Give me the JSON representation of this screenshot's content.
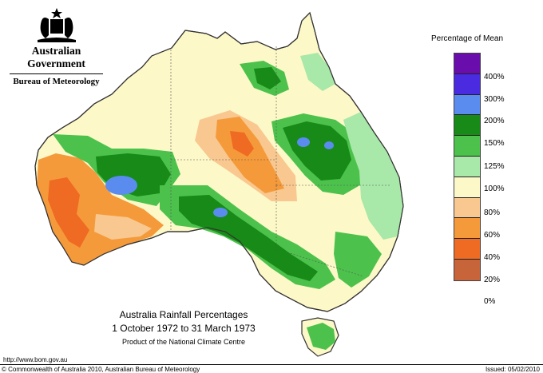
{
  "logo": {
    "government": "Australian Government",
    "bureau": "Bureau of Meteorology"
  },
  "map": {
    "title": "Australia Rainfall Percentages",
    "period": "1 October 1972 to 31 March 1973",
    "credit": "Product of the National Climate Centre"
  },
  "legend": {
    "title": "Percentage of Mean",
    "items": [
      {
        "label": "400%",
        "color": "#6a0dad"
      },
      {
        "label": "300%",
        "color": "#4a2be0"
      },
      {
        "label": "200%",
        "color": "#5a8cf0"
      },
      {
        "label": "150%",
        "color": "#178a17"
      },
      {
        "label": "125%",
        "color": "#4cc24c"
      },
      {
        "label": "100%",
        "color": "#a8e8a8"
      },
      {
        "label": "80%",
        "color": "#fdf8c8"
      },
      {
        "label": "60%",
        "color": "#f8c890"
      },
      {
        "label": "40%",
        "color": "#f59a3a"
      },
      {
        "label": "20%",
        "color": "#ef6a22"
      },
      {
        "label": "0%",
        "color": "#c8643a"
      }
    ]
  },
  "footer": {
    "url": "http://www.bom.gov.au",
    "copyright": "© Commonwealth of Australia 2010, Australian Bureau of Meteorology",
    "issued": "Issued: 05/02/2010"
  }
}
